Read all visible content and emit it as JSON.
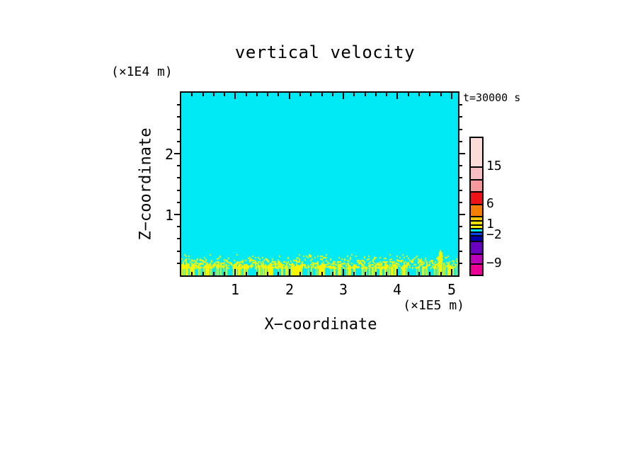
{
  "figure": {
    "title": "vertical velocity",
    "y_axis_unit": "(×1E4 m)",
    "time_label": "t=30000 s",
    "x_axis_unit": "(×1E5 m)",
    "x_label": "X−coordinate",
    "y_label": "Z−coordinate"
  },
  "chart_data": {
    "type": "heatmap",
    "title": "vertical velocity",
    "subtitle_time": "t=30000 s",
    "xlabel": "X-coordinate",
    "x_unit": "(×1E5 m)",
    "ylabel": "Z-coordinate",
    "y_unit": "(×1E4 m)",
    "xlim": [
      0,
      5.12
    ],
    "ylim": [
      0,
      3.0
    ],
    "x_major_ticks": [
      1,
      2,
      3,
      4,
      5
    ],
    "y_major_ticks": [
      1,
      2
    ],
    "x_minor_step": 0.2,
    "y_minor_step": 0.2,
    "grid": false,
    "legend_position": "colorbar-right",
    "field": {
      "description": "uniform near-zero vertical velocity (single cyan contour band) over whole domain, with shallow boundary-layer convective noise (yellow band values) below z≈0.4×1E4 m along the full x range, plus one stronger updraft streak near x≈4.77×1E5 m",
      "background_color": "#00EAF6",
      "noise_color": "#F7F500",
      "noise_top_z": 0.42,
      "stripe_top_z": 0.18,
      "updraft_streak_x": 4.77,
      "seed": 1337
    },
    "colorbar": {
      "labels": [
        {
          "text": "15",
          "boundary_index": 1
        },
        {
          "text": "6",
          "boundary_index": 4
        },
        {
          "text": "1",
          "boundary_index": 7
        },
        {
          "text": "−2",
          "boundary_index": 10
        },
        {
          "text": "−9",
          "boundary_index": 13
        }
      ],
      "segments": [
        {
          "color": "#FBDCD8",
          "height": 40
        },
        {
          "color": "#F8BEC2",
          "height": 18
        },
        {
          "color": "#F5989C",
          "height": 17
        },
        {
          "color": "#F01018",
          "height": 18
        },
        {
          "color": "#F57E00",
          "height": 17
        },
        {
          "color": "#F2C400",
          "height": 6
        },
        {
          "color": "#F0E000",
          "height": 6
        },
        {
          "color": "#F7F500",
          "height": 5
        },
        {
          "color": "#00EAF6",
          "height": 5
        },
        {
          "color": "#0048F0",
          "height": 5
        },
        {
          "color": "#0000A8",
          "height": 8
        },
        {
          "color": "#6A00C0",
          "height": 18
        },
        {
          "color": "#BC00BC",
          "height": 14
        },
        {
          "color": "#EE0098",
          "height": 16
        }
      ]
    }
  }
}
